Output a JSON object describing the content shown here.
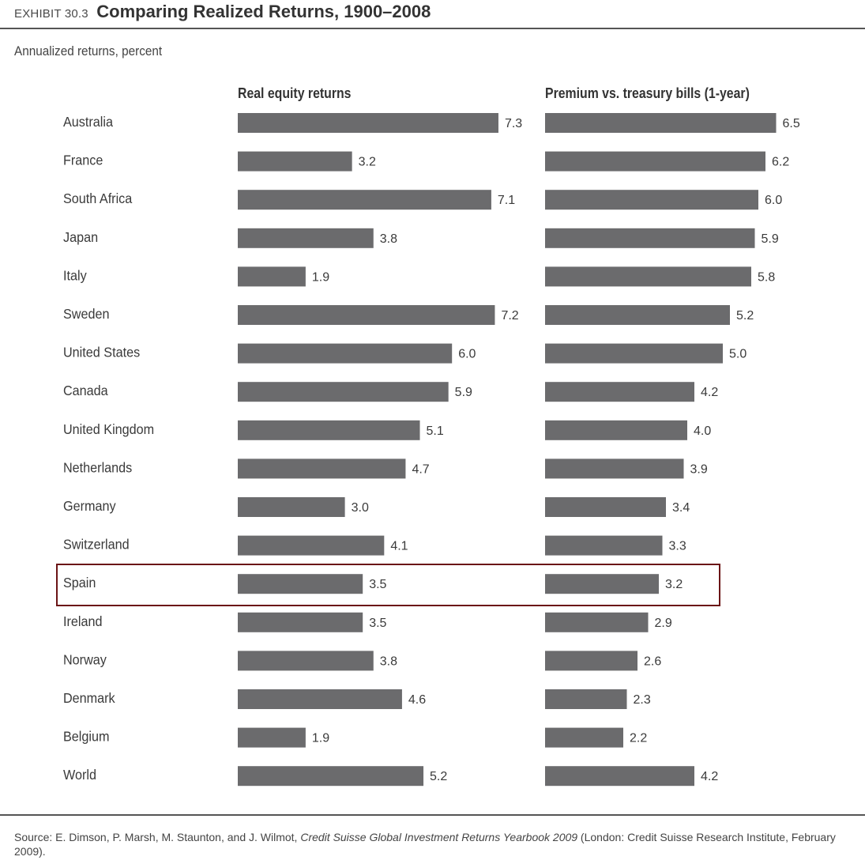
{
  "header": {
    "exhibit_label": "EXHIBIT 30.3",
    "title": "Comparing Realized Returns, 1900–2008",
    "subtitle": "Annualized returns, percent"
  },
  "chart_data": {
    "type": "bar",
    "orientation": "horizontal",
    "title": "Comparing Realized Returns, 1900–2008",
    "subtitle": "Annualized returns, percent",
    "categories": [
      "Australia",
      "France",
      "South Africa",
      "Japan",
      "Italy",
      "Sweden",
      "United States",
      "Canada",
      "United Kingdom",
      "Netherlands",
      "Germany",
      "Switzerland",
      "Spain",
      "Ireland",
      "Norway",
      "Denmark",
      "Belgium",
      "World"
    ],
    "series": [
      {
        "name": "Real equity returns",
        "values": [
          7.3,
          3.2,
          7.1,
          3.8,
          1.9,
          7.2,
          6.0,
          5.9,
          5.1,
          4.7,
          3.0,
          4.1,
          3.5,
          3.5,
          3.8,
          4.6,
          1.9,
          5.2
        ],
        "labels": [
          "7.3",
          "3.2",
          "7.1",
          "3.8",
          "1.9",
          "7.2",
          "6.0",
          "5.9",
          "5.1",
          "4.7",
          "3.0",
          "4.1",
          "3.5",
          "3.5",
          "3.8",
          "4.6",
          "1.9",
          "5.2"
        ]
      },
      {
        "name": "Premium vs. treasury bills (1-year)",
        "values": [
          6.5,
          6.2,
          6.0,
          5.9,
          5.8,
          5.2,
          5.0,
          4.2,
          4.0,
          3.9,
          3.4,
          3.3,
          3.2,
          2.9,
          2.6,
          2.3,
          2.2,
          4.2
        ],
        "labels": [
          "6.5",
          "6.2",
          "6.0",
          "5.9",
          "5.8",
          "5.2",
          "5.0",
          "4.2",
          "4.0",
          "3.9",
          "3.4",
          "3.3",
          "3.2",
          "2.9",
          "2.6",
          "2.3",
          "2.2",
          "4.2"
        ]
      }
    ],
    "highlighted_category": "Spain",
    "bar_color": "#6b6b6d",
    "highlight_color": "#6b1416",
    "grid": false,
    "legend": "column headers above each panel"
  },
  "source": {
    "prefix": "Source: E. Dimson, P. Marsh, M. Staunton, and J. Wilmot, ",
    "book": "Credit Suisse Global Investment Returns Yearbook 2009",
    "suffix": " (London: Credit Suisse Research Institute, February 2009)."
  }
}
